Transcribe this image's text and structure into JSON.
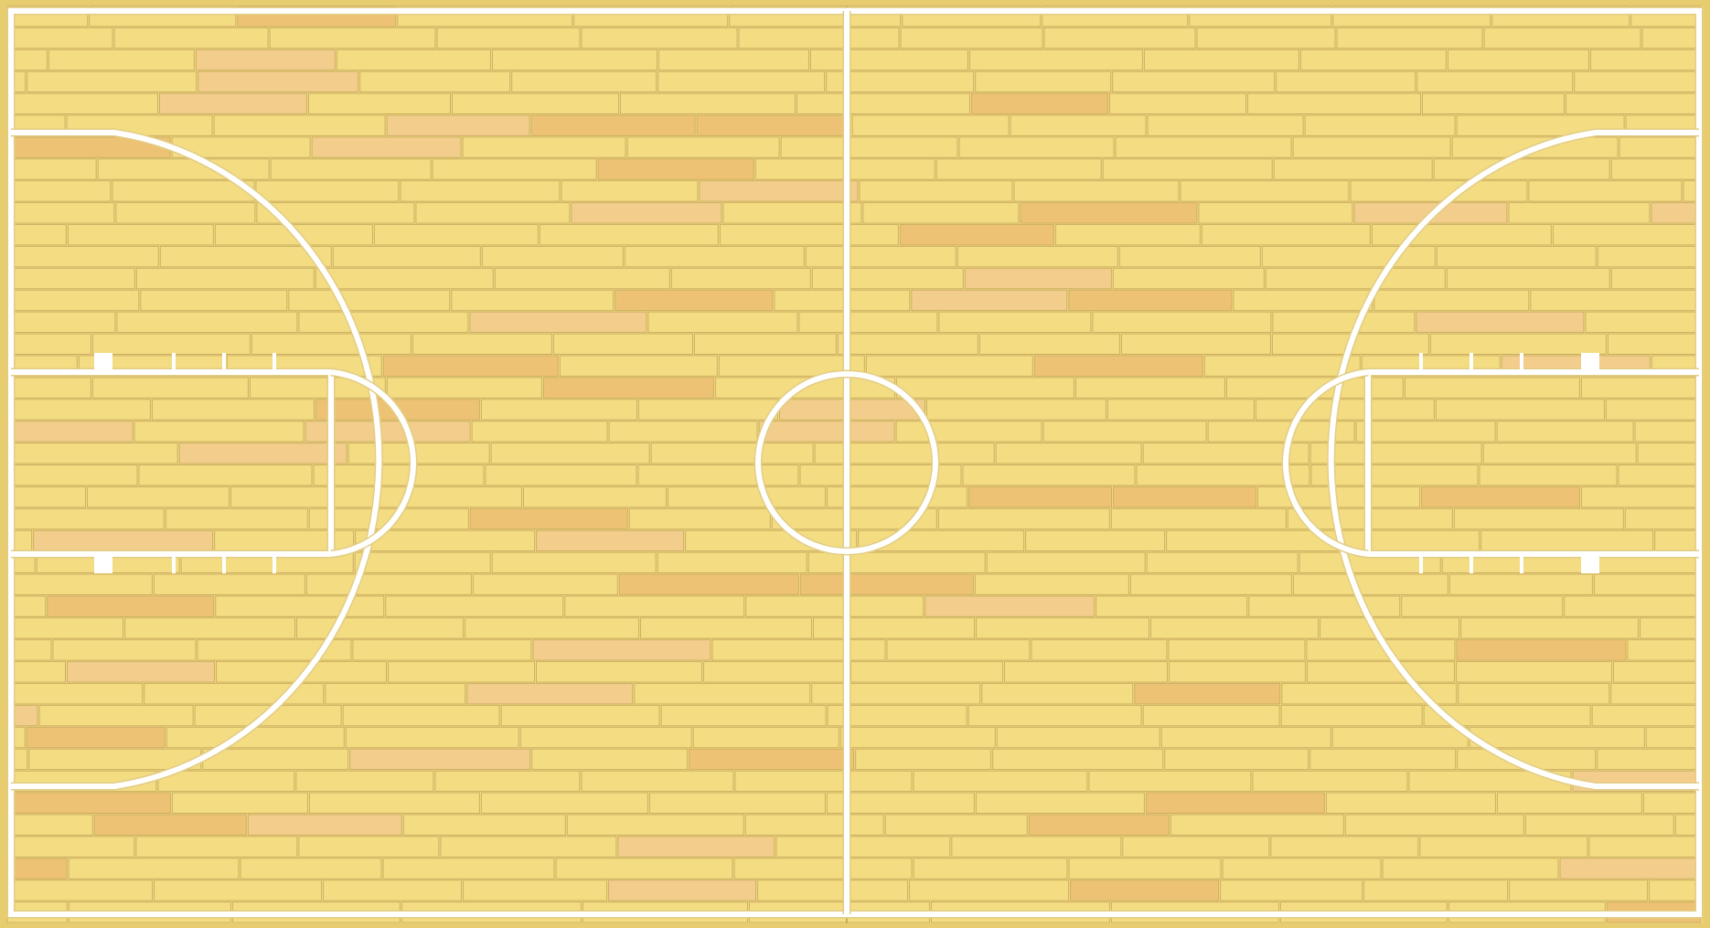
{
  "court": {
    "type": "basketball-full-court",
    "colors": {
      "floor_base": "#f2dc80",
      "plank_light": "#f3dc81",
      "plank_alt1": "#f2cd8c",
      "plank_alt2": "#eec274",
      "plank_border": "#cdb063",
      "seam": "#c9ac5f",
      "line": "#ffffff",
      "line_outline": "#e2cd86",
      "frame": "#e8cd70"
    },
    "plank_rows": 42,
    "accent_pattern_seed": 7
  }
}
